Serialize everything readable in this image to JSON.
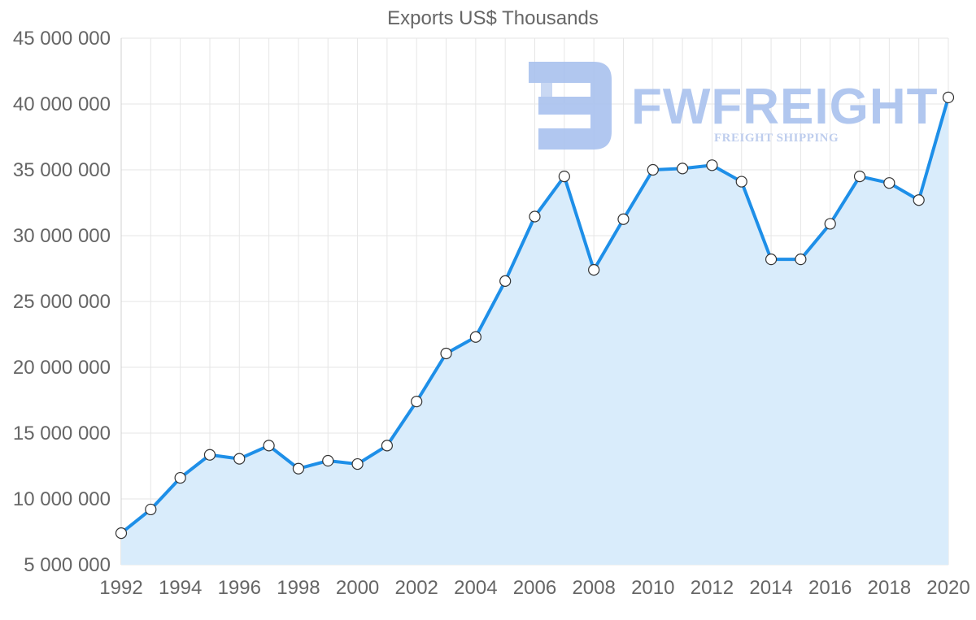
{
  "watermark": {
    "brand": "FWFREIGHT",
    "tagline": "FREIGHT SHIPPING",
    "color": "#a9c1ee"
  },
  "colors": {
    "line": "#1e8fe8",
    "area": "#d9ecfb",
    "grid": "#e6e6e6",
    "text": "#666666"
  },
  "chart_data": {
    "type": "area",
    "title": "Exports US$ Thousands",
    "xlabel": "",
    "ylabel": "",
    "x": [
      1992,
      1993,
      1994,
      1995,
      1996,
      1997,
      1998,
      1999,
      2000,
      2001,
      2002,
      2003,
      2004,
      2005,
      2006,
      2007,
      2008,
      2009,
      2010,
      2011,
      2012,
      2013,
      2014,
      2015,
      2016,
      2017,
      2018,
      2019,
      2020
    ],
    "values": [
      7400000,
      9200000,
      11600000,
      13350000,
      13050000,
      14050000,
      12300000,
      12900000,
      12650000,
      14050000,
      17400000,
      21050000,
      22300000,
      26550000,
      31450000,
      34500000,
      27400000,
      31250000,
      35000000,
      35100000,
      35350000,
      34100000,
      28200000,
      28200000,
      30900000,
      34500000,
      34000000,
      32700000,
      40500000
    ],
    "xlim": [
      1992,
      2020
    ],
    "ylim": [
      5000000,
      45000000
    ],
    "xticks": [
      "1992",
      "1994",
      "1996",
      "1998",
      "2000",
      "2002",
      "2004",
      "2006",
      "2008",
      "2010",
      "2012",
      "2014",
      "2016",
      "2018",
      "2020"
    ],
    "yticks": [
      "5 000 000",
      "10 000 000",
      "15 000 000",
      "20 000 000",
      "25 000 000",
      "30 000 000",
      "35 000 000",
      "40 000 000",
      "45 000 000"
    ],
    "grid": true,
    "legend": "none"
  }
}
